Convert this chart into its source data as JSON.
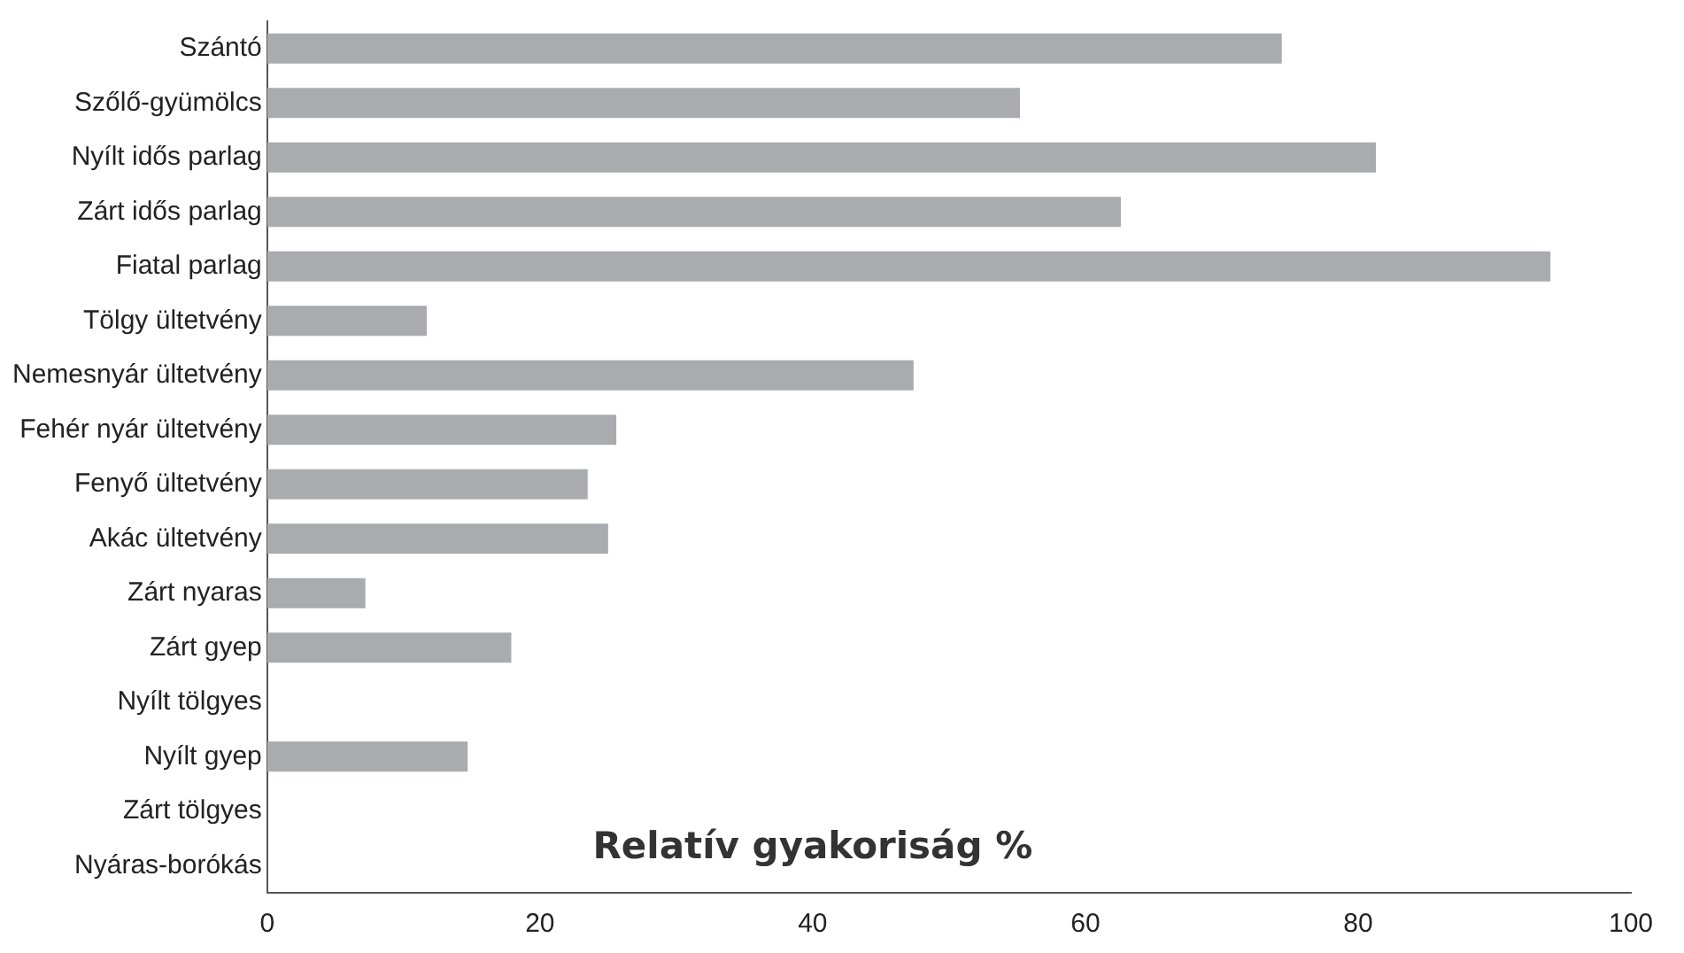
{
  "chart_data": {
    "type": "bar",
    "orientation": "horizontal",
    "xlabel": "Relatív gyakoriság %",
    "categories": [
      "Szántó",
      "Szőlő-gyümölcs",
      "Nyílt idős parlag",
      "Zárt idős parlag",
      "Fiatal parlag",
      "Tölgy ültetvény",
      "Nemesnyár ültetvény",
      "Fehér nyár ültetvény",
      "Fenyő ültetvény",
      "Akác ültetvény",
      "Zárt nyaras",
      "Zárt gyep",
      "Nyílt tölgyes",
      "Nyílt gyep",
      "Zárt tölgyes",
      "Nyáras-borókás"
    ],
    "values": [
      74.4,
      55.2,
      81.3,
      62.6,
      94.1,
      11.7,
      47.4,
      25.6,
      23.5,
      25.0,
      7.2,
      17.9,
      0,
      14.7,
      0,
      0
    ],
    "color": "#aaabaf",
    "xlim": [
      0,
      100
    ],
    "xticks": [
      0,
      20,
      40,
      60,
      80,
      100
    ],
    "grid": false,
    "legend": false
  }
}
